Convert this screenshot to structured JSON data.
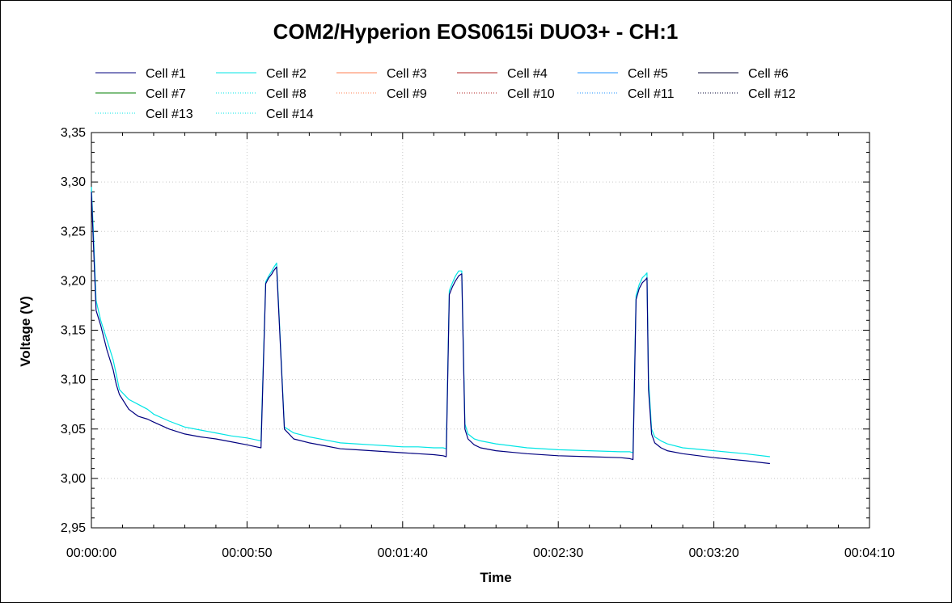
{
  "chart_data": {
    "type": "line",
    "title": "COM2/Hyperion EOS0615i DUO3+ - CH:1",
    "xlabel": "Time",
    "ylabel": "Voltage (V)",
    "xlim": [
      0,
      250
    ],
    "ylim": [
      2.95,
      3.35
    ],
    "x_ticks": [
      0,
      50,
      100,
      150,
      200,
      250
    ],
    "x_tick_labels": [
      "00:00:00",
      "00:00:50",
      "00:01:40",
      "00:02:30",
      "00:03:20",
      "00:04:10"
    ],
    "y_ticks": [
      2.95,
      3.0,
      3.05,
      3.1,
      3.15,
      3.2,
      3.25,
      3.3,
      3.35
    ],
    "y_tick_labels": [
      "2,95",
      "3,00",
      "3,05",
      "3,10",
      "3,15",
      "3,20",
      "3,25",
      "3,30",
      "3,35"
    ],
    "grid": true,
    "legend_position": "top",
    "legend": [
      {
        "name": "Cell #1",
        "color": "#00007f",
        "dash": "solid"
      },
      {
        "name": "Cell #2",
        "color": "#00e5e5",
        "dash": "solid"
      },
      {
        "name": "Cell #3",
        "color": "#ff7f50",
        "dash": "solid"
      },
      {
        "name": "Cell #4",
        "color": "#b22222",
        "dash": "solid"
      },
      {
        "name": "Cell #5",
        "color": "#1e90ff",
        "dash": "solid"
      },
      {
        "name": "Cell #6",
        "color": "#000033",
        "dash": "solid"
      },
      {
        "name": "Cell #7",
        "color": "#007f00",
        "dash": "solid"
      },
      {
        "name": "Cell #8",
        "color": "#00e5e5",
        "dash": "dotted"
      },
      {
        "name": "Cell #9",
        "color": "#ff7f50",
        "dash": "dotted"
      },
      {
        "name": "Cell #10",
        "color": "#b22222",
        "dash": "dotted"
      },
      {
        "name": "Cell #11",
        "color": "#1e90ff",
        "dash": "dotted"
      },
      {
        "name": "Cell #12",
        "color": "#000033",
        "dash": "dotted"
      },
      {
        "name": "Cell #13",
        "color": "#00e5e5",
        "dash": "dotted"
      },
      {
        "name": "Cell #14",
        "color": "#00e5e5",
        "dash": "dotted"
      }
    ],
    "series": [
      {
        "name": "Cell #2",
        "color": "#00e5e5",
        "x": [
          0,
          0.5,
          1.5,
          3,
          5,
          7,
          8,
          9,
          12,
          15,
          18,
          20,
          25,
          30,
          35,
          40,
          45,
          50,
          53,
          54.5,
          56,
          57,
          58,
          58.5,
          59.5,
          62,
          65,
          70,
          75,
          80,
          85,
          90,
          95,
          100,
          105,
          110,
          113,
          114,
          115,
          116,
          117,
          118,
          119,
          120,
          121,
          123,
          125,
          130,
          140,
          150,
          160,
          170,
          173,
          174,
          175,
          176,
          177,
          178,
          178.5,
          179,
          180,
          181,
          183,
          185,
          190,
          200,
          210,
          218
        ],
        "y": [
          3.295,
          3.26,
          3.18,
          3.16,
          3.14,
          3.12,
          3.105,
          3.09,
          3.08,
          3.075,
          3.07,
          3.065,
          3.058,
          3.052,
          3.049,
          3.046,
          3.043,
          3.041,
          3.039,
          3.038,
          3.199,
          3.205,
          3.21,
          3.213,
          3.218,
          3.052,
          3.046,
          3.042,
          3.039,
          3.036,
          3.035,
          3.034,
          3.033,
          3.032,
          3.032,
          3.031,
          3.031,
          3.03,
          3.19,
          3.198,
          3.205,
          3.21,
          3.21,
          3.055,
          3.045,
          3.04,
          3.038,
          3.035,
          3.031,
          3.029,
          3.028,
          3.027,
          3.027,
          3.026,
          3.185,
          3.196,
          3.203,
          3.206,
          3.208,
          3.1,
          3.05,
          3.042,
          3.038,
          3.035,
          3.031,
          3.028,
          3.025,
          3.022
        ]
      },
      {
        "name": "Cell #1",
        "color": "#00007f",
        "x": [
          0,
          0.5,
          1.5,
          3,
          5,
          7,
          8,
          9,
          12,
          15,
          18,
          20,
          25,
          30,
          35,
          40,
          45,
          50,
          53,
          54.5,
          56,
          57,
          58,
          58.5,
          59.5,
          62,
          65,
          70,
          75,
          80,
          85,
          90,
          95,
          100,
          105,
          110,
          113,
          114,
          115,
          116,
          117,
          118,
          119,
          120,
          121,
          123,
          125,
          130,
          140,
          150,
          160,
          170,
          173,
          174,
          175,
          176,
          177,
          178,
          178.5,
          179,
          180,
          181,
          183,
          185,
          190,
          200,
          210,
          218
        ],
        "y": [
          3.29,
          3.25,
          3.17,
          3.155,
          3.13,
          3.11,
          3.095,
          3.085,
          3.07,
          3.063,
          3.06,
          3.057,
          3.05,
          3.045,
          3.042,
          3.04,
          3.037,
          3.034,
          3.032,
          3.031,
          3.197,
          3.203,
          3.207,
          3.21,
          3.214,
          3.05,
          3.04,
          3.036,
          3.033,
          3.03,
          3.029,
          3.028,
          3.027,
          3.026,
          3.025,
          3.024,
          3.023,
          3.022,
          3.186,
          3.194,
          3.2,
          3.205,
          3.207,
          3.05,
          3.04,
          3.034,
          3.031,
          3.028,
          3.025,
          3.023,
          3.022,
          3.021,
          3.02,
          3.019,
          3.181,
          3.192,
          3.198,
          3.201,
          3.203,
          3.09,
          3.045,
          3.036,
          3.031,
          3.028,
          3.025,
          3.021,
          3.018,
          3.015
        ]
      }
    ]
  }
}
